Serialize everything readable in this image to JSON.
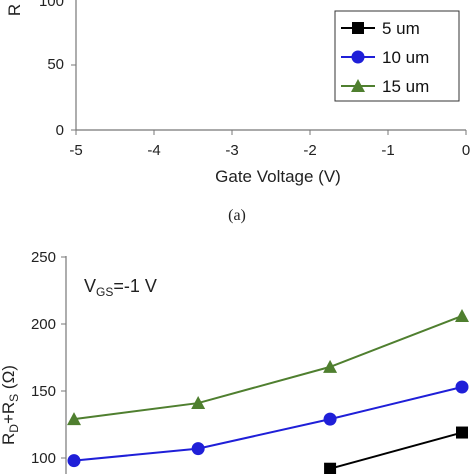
{
  "chart_data": [
    {
      "type": "line",
      "caption": "(a)",
      "xlabel": "Gate Voltage (V)",
      "ylabel_partial": "R",
      "x_ticks": [
        "-5",
        "-4",
        "-3",
        "-2",
        "-1",
        "0"
      ],
      "y_ticks": [
        "0",
        "50",
        "100"
      ],
      "xlim": [
        -5,
        0
      ],
      "ylim": [
        0,
        100
      ],
      "legend": {
        "placement": "right",
        "entries": [
          "5 um",
          "10 um",
          "15 um"
        ]
      },
      "series": [
        {
          "name": "5 um",
          "marker": "square",
          "color": "#000000",
          "values": []
        },
        {
          "name": "10 um",
          "marker": "circle",
          "color": "#1f1fd8",
          "values": []
        },
        {
          "name": "15 um",
          "marker": "triangle",
          "color": "#4f7f2f",
          "values": []
        }
      ]
    },
    {
      "type": "line",
      "annotation": {
        "main": "V",
        "sub": "GS",
        "rest": "=-1 V"
      },
      "ylabel": {
        "r1": "R",
        "s1": "D",
        "plus": "+R",
        "s2": "S",
        "unit": " (Ω)"
      },
      "y_ticks": [
        "100",
        "150",
        "200",
        "250"
      ],
      "ylim": [
        100,
        250
      ],
      "series": [
        {
          "name": "15 um",
          "marker": "triangle",
          "color": "#4f7f2f",
          "points": [
            [
              -5,
              129
            ],
            [
              -3.4,
              141
            ],
            [
              -1.7,
              168
            ],
            [
              0,
              206
            ]
          ]
        },
        {
          "name": "10 um",
          "marker": "circle",
          "color": "#1f1fd8",
          "points": [
            [
              -5,
              98
            ],
            [
              -3.4,
              107
            ],
            [
              -1.7,
              129
            ],
            [
              0,
              153
            ]
          ]
        },
        {
          "name": "5 um",
          "marker": "square",
          "color": "#000000",
          "points": [
            [
              -1.7,
              92
            ],
            [
              0,
              119
            ]
          ]
        }
      ]
    }
  ]
}
